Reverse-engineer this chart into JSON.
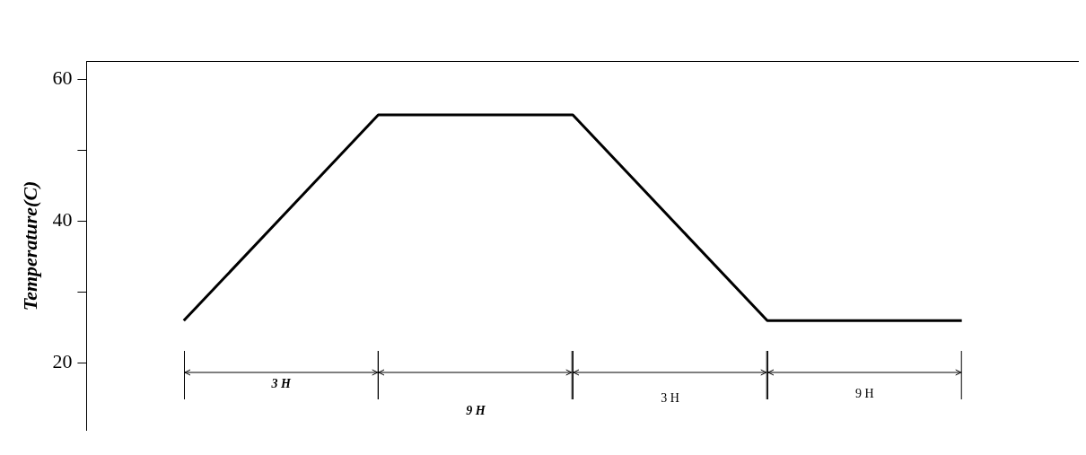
{
  "chart_data": {
    "type": "line",
    "ylabel": "Temperature(C)",
    "categories": [
      null,
      null,
      null,
      null,
      null
    ],
    "series": [
      {
        "color": "#000000",
        "values": [
          26,
          55,
          55,
          26,
          26
        ]
      }
    ],
    "ylim": [
      10.5,
      62.6
    ],
    "yticks": [
      20,
      {
        "value": 30,
        "label": null
      },
      40,
      {
        "value": 50,
        "label": null
      },
      60
    ],
    "tick_labels": "y",
    "grid": false,
    "legend": false,
    "marker": "none",
    "line_style": "solid",
    "annotations": [
      "3 H",
      "9 H",
      "3 H",
      "9 H"
    ]
  }
}
